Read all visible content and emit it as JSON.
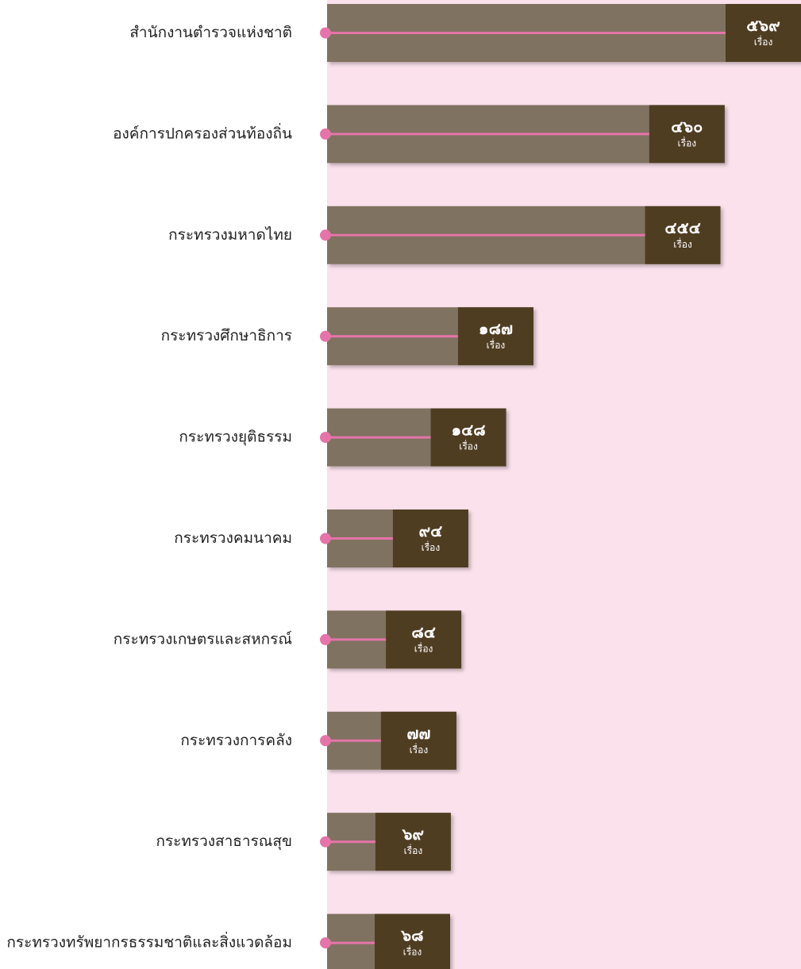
{
  "chart_data": {
    "type": "bar",
    "categories": [
      "สำนักงานตำรวจแห่งชาติ",
      "องค์การปกครองส่วนท้องถิ่น",
      "กระทรวงมหาดไทย",
      "กระทรวงศึกษาธิการ",
      "กระทรวงยุติธรรม",
      "กระทรวงคมนาคม",
      "กระทรวงเกษตรและสหกรณ์",
      "กระทรวงการคลัง",
      "กระทรวงสาธารณสุข",
      "กระทรวงทรัพยากรธรรมชาติและสิ่งแวดล้อม"
    ],
    "values": [
      569,
      460,
      454,
      187,
      148,
      94,
      84,
      77,
      69,
      68
    ],
    "value_labels": [
      "๕๖๙",
      "๔๖๐",
      "๔๕๔",
      "๑๘๗",
      "๑๔๘",
      "๙๔",
      "๘๔",
      "๗๗",
      "๖๙",
      "๖๘"
    ],
    "value_unit": "เรื่อง",
    "color": "#7f7260",
    "label_box_color": "#4f3d22",
    "line_color": "#e574a8",
    "background_color": "#fbe1ec"
  }
}
